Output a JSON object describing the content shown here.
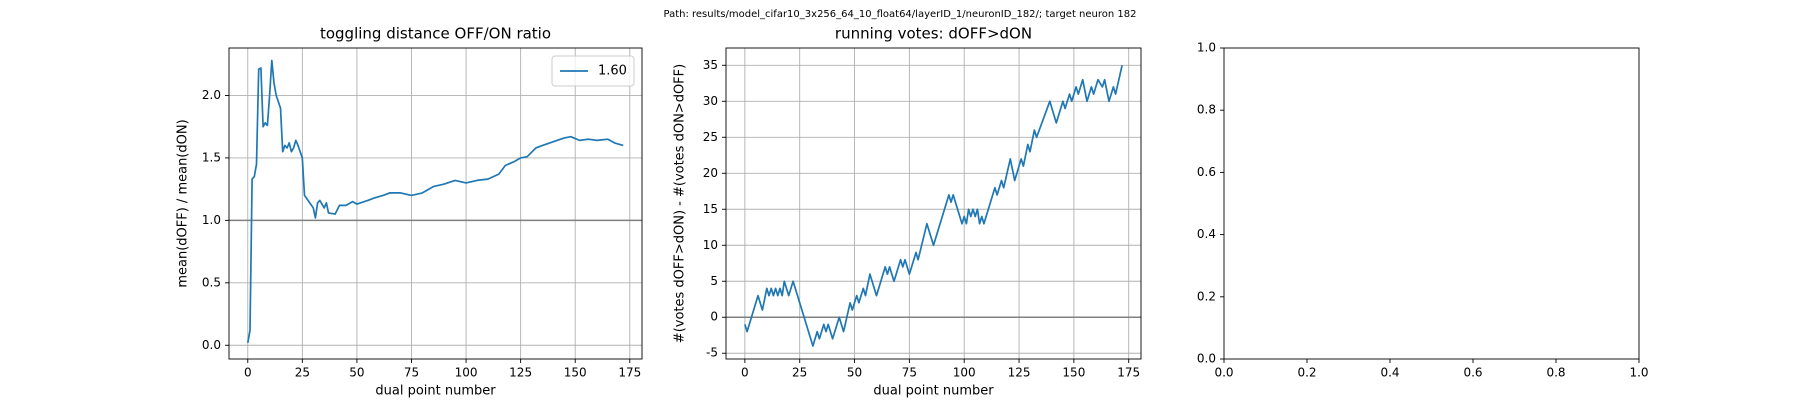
{
  "title": "Path: results/model_cifar10_3x256_64_10_float64/layerID_1/neuronID_182/; target neuron 182",
  "chart_data": [
    {
      "type": "line",
      "title": "toggling distance OFF/ON ratio",
      "xlabel": "dual point number",
      "ylabel": "mean(dOFF) / mean(dON)",
      "xlim": [
        -8.6,
        180.6
      ],
      "ylim": [
        -0.11,
        2.38
      ],
      "xticks": [
        0,
        25,
        50,
        75,
        100,
        125,
        150,
        175
      ],
      "yticks": [
        {
          "value": 0,
          "label": "0.0"
        },
        {
          "value": 0.5,
          "label": "0.5"
        },
        {
          "value": 1,
          "label": "1.0"
        },
        {
          "value": 1.5,
          "label": "1.5"
        },
        {
          "value": 2,
          "label": "2.0"
        }
      ],
      "grid": true,
      "legend": "upper right",
      "hline": 1.0,
      "hline_color": "#808080",
      "x": [
        0,
        1,
        2,
        3,
        4,
        5,
        6,
        7,
        8,
        9,
        10,
        11,
        12,
        13,
        15,
        16,
        17,
        18,
        19,
        20,
        21,
        22,
        23,
        25,
        26,
        28,
        30,
        31,
        32,
        33,
        35,
        36,
        37,
        40,
        42,
        45,
        48,
        50,
        55,
        58,
        62,
        65,
        70,
        75,
        80,
        85,
        90,
        95,
        100,
        105,
        110,
        115,
        118,
        122,
        125,
        128,
        132,
        135,
        140,
        145,
        148,
        152,
        156,
        160,
        165,
        168,
        172
      ],
      "series": [
        {
          "name": "1.60",
          "color": "#1f77b4",
          "values": [
            0.02,
            0.12,
            1.33,
            1.35,
            1.45,
            2.21,
            2.22,
            1.75,
            1.78,
            1.76,
            2.0,
            2.28,
            2.1,
            2.0,
            1.9,
            1.55,
            1.6,
            1.58,
            1.62,
            1.55,
            1.58,
            1.64,
            1.6,
            1.5,
            1.2,
            1.15,
            1.1,
            1.02,
            1.14,
            1.16,
            1.1,
            1.14,
            1.06,
            1.05,
            1.12,
            1.12,
            1.15,
            1.13,
            1.16,
            1.18,
            1.2,
            1.22,
            1.22,
            1.2,
            1.22,
            1.27,
            1.29,
            1.32,
            1.3,
            1.32,
            1.33,
            1.37,
            1.44,
            1.47,
            1.5,
            1.51,
            1.58,
            1.6,
            1.63,
            1.66,
            1.67,
            1.64,
            1.65,
            1.64,
            1.65,
            1.62,
            1.6
          ]
        }
      ]
    },
    {
      "type": "line",
      "title": "running votes: dOFF>dON",
      "xlabel": "dual point number",
      "ylabel": "#(votes dOFF>dON) - #(votes dON>dOFF)",
      "xlim": [
        -8.6,
        180.6
      ],
      "ylim": [
        -5.8,
        37.4
      ],
      "xticks": [
        0,
        25,
        50,
        75,
        100,
        125,
        150,
        175
      ],
      "yticks": [
        -5,
        0,
        5,
        10,
        15,
        20,
        25,
        30,
        35
      ],
      "grid": true,
      "hline": 0,
      "hline_color": "#808080",
      "x": [
        0,
        1,
        6,
        8,
        10,
        11,
        12,
        13,
        14,
        15,
        16,
        17,
        18,
        20,
        22,
        25,
        31,
        33,
        34,
        36,
        37,
        38,
        40,
        43,
        45,
        48,
        49,
        51,
        52,
        54,
        55,
        57,
        60,
        64,
        65,
        66,
        68,
        71,
        72,
        73,
        75,
        78,
        79,
        83,
        86,
        93,
        94,
        95,
        99,
        100,
        101,
        102,
        103,
        104,
        105,
        106,
        107,
        108,
        109,
        114,
        115,
        117,
        118,
        121,
        123,
        126,
        127,
        129,
        130,
        132,
        133,
        139,
        142,
        145,
        146,
        148,
        149,
        151,
        152,
        154,
        156,
        158,
        159,
        161,
        163,
        164,
        166,
        168,
        169,
        172
      ],
      "series": [
        {
          "color": "#1f77b4",
          "values": [
            -1,
            -2,
            3,
            1,
            4,
            3,
            4,
            3,
            4,
            3,
            4,
            3,
            5,
            3,
            5,
            2,
            -4,
            -2,
            -3,
            -1,
            -2,
            -1,
            -3,
            0,
            -2,
            2,
            1,
            3,
            2,
            4,
            3,
            6,
            3,
            7,
            6,
            7,
            5,
            8,
            7,
            8,
            6,
            9,
            8,
            13,
            10,
            17,
            16,
            17,
            13,
            14,
            13,
            15,
            14,
            15,
            14,
            15,
            13,
            14,
            13,
            18,
            17,
            19,
            18,
            22,
            19,
            22,
            21,
            24,
            23,
            26,
            25,
            30,
            27,
            30,
            29,
            31,
            30,
            32,
            31,
            33,
            30,
            32,
            31,
            33,
            32,
            33,
            30,
            32,
            31,
            35
          ]
        }
      ]
    },
    {
      "type": "line",
      "xlim": [
        0,
        1
      ],
      "ylim": [
        0,
        1
      ],
      "xticks": [
        {
          "value": 0,
          "label": "0.0"
        },
        {
          "value": 0.2,
          "label": "0.2"
        },
        {
          "value": 0.4,
          "label": "0.4"
        },
        {
          "value": 0.6,
          "label": "0.6"
        },
        {
          "value": 0.8,
          "label": "0.8"
        },
        {
          "value": 1,
          "label": "1.0"
        }
      ],
      "yticks": [
        {
          "value": 0,
          "label": "0.0"
        },
        {
          "value": 0.2,
          "label": "0.2"
        },
        {
          "value": 0.4,
          "label": "0.4"
        },
        {
          "value": 0.6,
          "label": "0.6"
        },
        {
          "value": 0.8,
          "label": "0.8"
        },
        {
          "value": 1,
          "label": "1.0"
        }
      ],
      "grid": false,
      "series": []
    }
  ]
}
